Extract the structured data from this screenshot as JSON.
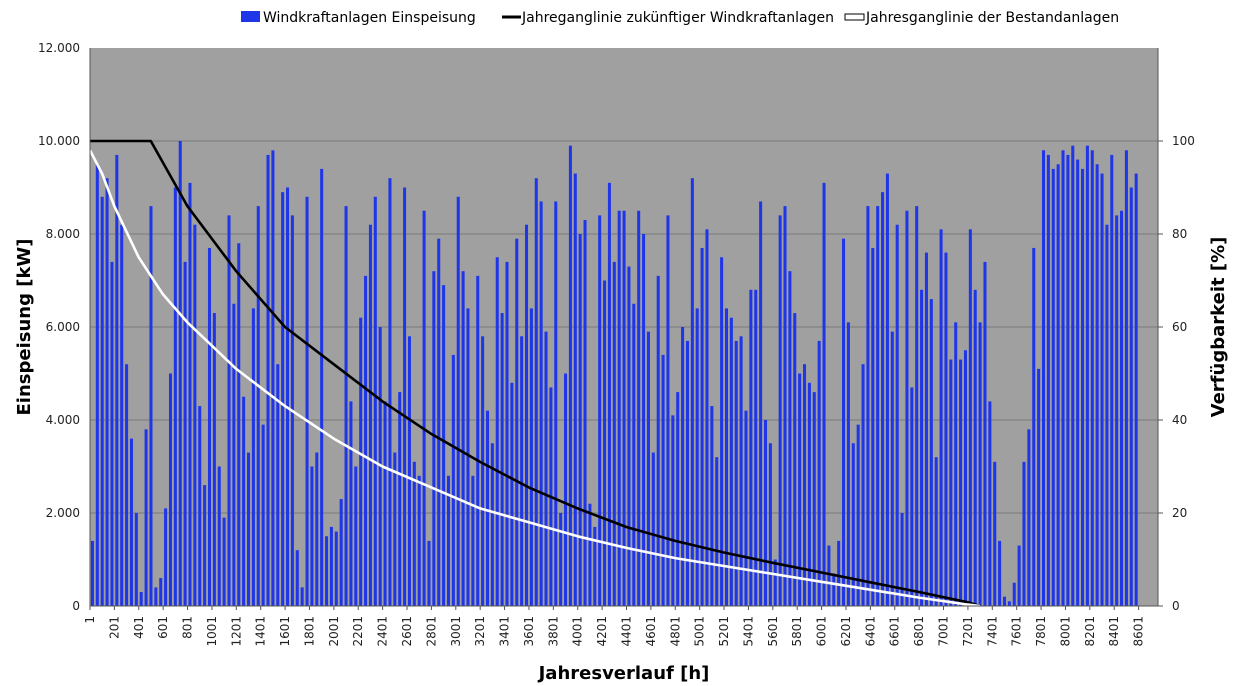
{
  "chart_data": {
    "type": "bar+line",
    "title": "",
    "legend": {
      "placement": "top-right",
      "entries": [
        {
          "label": "Windkraftanlagen Einspeisung",
          "kind": "bar",
          "color": "#1f36e8"
        },
        {
          "label": "Jahreganglinie zukünftiger Windkraftanlagen",
          "kind": "line",
          "color": "#000000"
        },
        {
          "label": "Jahresganglinie der Bestandanlagen",
          "kind": "line",
          "color": "#ffffff"
        }
      ]
    },
    "xlabel": "Jahresverlauf [h]",
    "ylabel": "Einspeisung [kW]",
    "y2label": "Verfügbarkeit [%]",
    "xlim": [
      1,
      8760
    ],
    "ylim": [
      0,
      12000
    ],
    "y2lim": [
      0,
      120
    ],
    "grid": true,
    "plot_background": "#a0a0a0",
    "x_tick_labels": [
      "1",
      "201",
      "401",
      "601",
      "801",
      "1001",
      "1201",
      "1401",
      "1601",
      "1801",
      "2001",
      "2201",
      "2401",
      "2601",
      "2801",
      "3001",
      "3201",
      "3401",
      "3601",
      "3801",
      "4001",
      "4201",
      "4401",
      "4601",
      "4801",
      "5001",
      "5201",
      "5401",
      "5601",
      "5801",
      "6001",
      "6201",
      "6401",
      "6601",
      "6801",
      "7001",
      "7201",
      "7401",
      "7601",
      "7801",
      "8001",
      "8201",
      "8401",
      "8601"
    ],
    "y_tick_labels": [
      "0",
      "2.000",
      "4.000",
      "6.000",
      "8.000",
      "10.000",
      "12.000"
    ],
    "y2_tick_labels": [
      "0",
      "20",
      "40",
      "60",
      "80",
      "100"
    ],
    "bars": {
      "name": "Windkraftanlagen Einspeisung",
      "color": "#1f36e8",
      "x_step_h": 40,
      "values": [
        1400,
        9500,
        8800,
        9200,
        7400,
        9700,
        8200,
        5200,
        3600,
        2000,
        300,
        3800,
        8600,
        400,
        600,
        2100,
        5000,
        9000,
        10000,
        7400,
        9100,
        8200,
        4300,
        2600,
        7700,
        6300,
        3000,
        1900,
        8400,
        6500,
        7800,
        4500,
        3300,
        6400,
        8600,
        3900,
        9700,
        9800,
        5200,
        8900,
        9000,
        8400,
        1200,
        400,
        8800,
        3000,
        3300,
        9400,
        1500,
        1700,
        1600,
        2300,
        8600,
        4400,
        3000,
        6200,
        7100,
        8200,
        8800,
        6000,
        4400,
        9200,
        3300,
        4600,
        9000,
        5800,
        3100,
        2800,
        8500,
        1400,
        7200,
        7900,
        6900,
        2800,
        5400,
        8800,
        7200,
        6400,
        2800,
        7100,
        5800,
        4200,
        3500,
        7500,
        6300,
        7400,
        4800,
        7900,
        5800,
        8200,
        6400,
        9200,
        8700,
        5900,
        4700,
        8700,
        2000,
        5000,
        9900,
        9300,
        8000,
        8300,
        2200,
        1700,
        8400,
        7000,
        9100,
        7400,
        8500,
        8500,
        7300,
        6500,
        8500,
        8000,
        5900,
        3300,
        7100,
        5400,
        8400,
        4100,
        4600,
        6000,
        5700,
        9200,
        6400,
        7700,
        8100,
        4300,
        3200,
        7500,
        6400,
        6200,
        5700,
        5800,
        4200,
        6800,
        6800,
        8700,
        4000,
        3500,
        1000,
        8400,
        8600,
        7200,
        6300,
        5000,
        5200,
        4800,
        4600,
        5700,
        9100,
        1300,
        700,
        1400,
        7900,
        6100,
        3500,
        3900,
        5200,
        8600,
        7700,
        8600,
        8900,
        9300,
        5900,
        8200,
        2000,
        8500,
        4700,
        8600,
        6800,
        7600,
        6600,
        3200,
        8100,
        7600,
        5300,
        6100,
        5300,
        5500,
        8100,
        6800,
        6100,
        7400,
        4400,
        3100,
        1400,
        200,
        100,
        500,
        1300,
        3100,
        3800,
        7700,
        5100,
        9800,
        9700,
        9400,
        9500,
        9800,
        9700,
        9900,
        9600,
        9400,
        9900,
        9800,
        9500,
        9300,
        8200,
        9700,
        8400,
        8500,
        9800,
        9000,
        9300
      ]
    },
    "series": [
      {
        "name": "Jahreganglinie zukünftiger Windkraftanlagen",
        "axis": "y2",
        "color": "#000000",
        "x": [
          1,
          500,
          800,
          1200,
          1600,
          2000,
          2400,
          2800,
          3200,
          3600,
          4000,
          4400,
          4800,
          5200,
          5600,
          6000,
          6400,
          6800,
          7200,
          7300
        ],
        "values": [
          100,
          100,
          86,
          72,
          60,
          52,
          44,
          37,
          31,
          25.5,
          21,
          17,
          14,
          11.5,
          9.3,
          7.2,
          5.1,
          3,
          0.8,
          0
        ]
      },
      {
        "name": "Jahresganglinie der Bestandanlagen",
        "axis": "y2",
        "color": "#ffffff",
        "x": [
          1,
          100,
          200,
          400,
          600,
          800,
          1000,
          1200,
          1600,
          2000,
          2400,
          2800,
          3200,
          3600,
          4000,
          4400,
          4800,
          5200,
          5600,
          6000,
          6400,
          6800,
          7200,
          7300
        ],
        "values": [
          98,
          93,
          86,
          75,
          67,
          61,
          56,
          51,
          43,
          36,
          30,
          25.5,
          21,
          18,
          15,
          12.5,
          10.3,
          8.6,
          6.9,
          5.2,
          3.5,
          1.8,
          0.3,
          0
        ]
      }
    ]
  }
}
